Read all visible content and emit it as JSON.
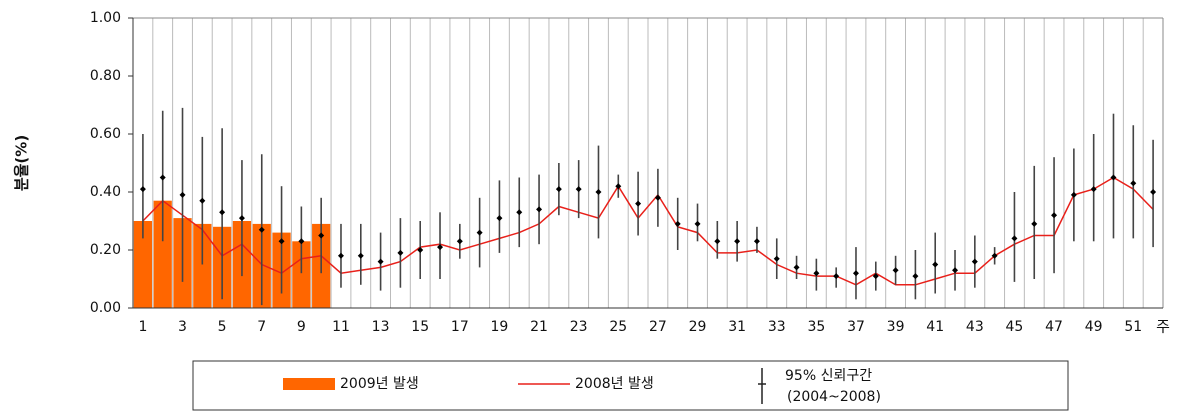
{
  "chart_data": {
    "type": "bar",
    "y_label": "분율(%)",
    "x_label": "주",
    "categories": [
      "1",
      null,
      "3",
      null,
      "5",
      null,
      "7",
      null,
      "9",
      null,
      "11",
      null,
      "13",
      null,
      "15",
      null,
      "17",
      null,
      "19",
      null,
      "21",
      null,
      "23",
      null,
      "25",
      null,
      "27",
      null,
      "29",
      null,
      "31",
      null,
      "33",
      null,
      "35",
      null,
      "37",
      null,
      "39",
      null,
      "41",
      null,
      "43",
      null,
      "45",
      null,
      "47",
      null,
      "49",
      null,
      "51",
      null
    ],
    "ylim": [
      0,
      1
    ],
    "yticks": [
      {
        "value": 0,
        "label": "0.00"
      },
      {
        "value": 0.2,
        "label": "0.20"
      },
      {
        "value": 0.4,
        "label": "0.40"
      },
      {
        "value": 0.6,
        "label": "0.60"
      },
      {
        "value": 0.8,
        "label": "0.80"
      },
      {
        "value": 1,
        "label": "1.00"
      }
    ],
    "grid": false,
    "series": [
      {
        "name": "2009년 발생",
        "type": "bar",
        "color": "#ff6600",
        "values": [
          0.3,
          0.37,
          0.31,
          0.29,
          0.28,
          0.3,
          0.29,
          0.26,
          0.23,
          0.29,
          null,
          null,
          null,
          null,
          null,
          null,
          null,
          null,
          null,
          null,
          null,
          null,
          null,
          null,
          null,
          null,
          null,
          null,
          null,
          null,
          null,
          null,
          null,
          null,
          null,
          null,
          null,
          null,
          null,
          null,
          null,
          null,
          null,
          null,
          null,
          null,
          null,
          null,
          null,
          null,
          null,
          null
        ]
      },
      {
        "name": "2008년 발생",
        "type": "line",
        "color": "#e8201a",
        "values": [
          0.3,
          0.37,
          0.32,
          0.27,
          0.18,
          0.22,
          0.15,
          0.12,
          0.17,
          0.18,
          0.12,
          0.13,
          0.14,
          0.16,
          0.21,
          0.22,
          0.2,
          0.22,
          0.24,
          0.26,
          0.29,
          0.35,
          0.33,
          0.31,
          0.42,
          0.31,
          0.39,
          0.28,
          0.26,
          0.19,
          0.19,
          0.2,
          0.15,
          0.12,
          0.11,
          0.11,
          0.08,
          0.12,
          0.08,
          0.08,
          0.1,
          0.12,
          0.12,
          0.18,
          0.22,
          0.25,
          0.25,
          0.39,
          0.41,
          0.45,
          0.41,
          0.34
        ]
      },
      {
        "legend_lines": [
          "95% 신뢰구간",
          "(2004~2008)"
        ],
        "type": "interval",
        "color": "#222222",
        "values": [
          0.41,
          0.45,
          0.39,
          0.37,
          0.33,
          0.31,
          0.27,
          0.23,
          0.23,
          0.25,
          0.18,
          0.18,
          0.16,
          0.19,
          0.2,
          0.21,
          0.23,
          0.26,
          0.31,
          0.33,
          0.34,
          0.41,
          0.41,
          0.4,
          0.42,
          0.36,
          0.38,
          0.29,
          0.29,
          0.23,
          0.23,
          0.23,
          0.17,
          0.14,
          0.12,
          0.11,
          0.12,
          0.11,
          0.13,
          0.11,
          0.15,
          0.13,
          0.16,
          0.18,
          0.24,
          0.29,
          0.32,
          0.39,
          0.41,
          0.45,
          0.43,
          0.4
        ],
        "low": [
          0.24,
          0.23,
          0.09,
          0.15,
          0.03,
          0.11,
          0.01,
          0.05,
          0.12,
          0.12,
          0.07,
          0.08,
          0.06,
          0.07,
          0.1,
          0.1,
          0.17,
          0.14,
          0.19,
          0.21,
          0.22,
          0.32,
          0.31,
          0.24,
          0.38,
          0.25,
          0.28,
          0.2,
          0.23,
          0.17,
          0.16,
          0.19,
          0.1,
          0.1,
          0.06,
          0.07,
          0.03,
          0.06,
          0.08,
          0.03,
          0.05,
          0.06,
          0.07,
          0.15,
          0.09,
          0.1,
          0.12,
          0.23,
          0.23,
          0.24,
          0.24,
          0.21
        ],
        "high": [
          0.6,
          0.68,
          0.69,
          0.59,
          0.62,
          0.51,
          0.53,
          0.42,
          0.35,
          0.38,
          0.29,
          0.29,
          0.26,
          0.31,
          0.3,
          0.33,
          0.29,
          0.38,
          0.44,
          0.45,
          0.46,
          0.5,
          0.51,
          0.56,
          0.46,
          0.47,
          0.48,
          0.38,
          0.36,
          0.3,
          0.3,
          0.28,
          0.24,
          0.18,
          0.17,
          0.14,
          0.21,
          0.16,
          0.18,
          0.2,
          0.26,
          0.2,
          0.25,
          0.21,
          0.4,
          0.49,
          0.52,
          0.55,
          0.6,
          0.67,
          0.63,
          0.58
        ]
      }
    ]
  }
}
